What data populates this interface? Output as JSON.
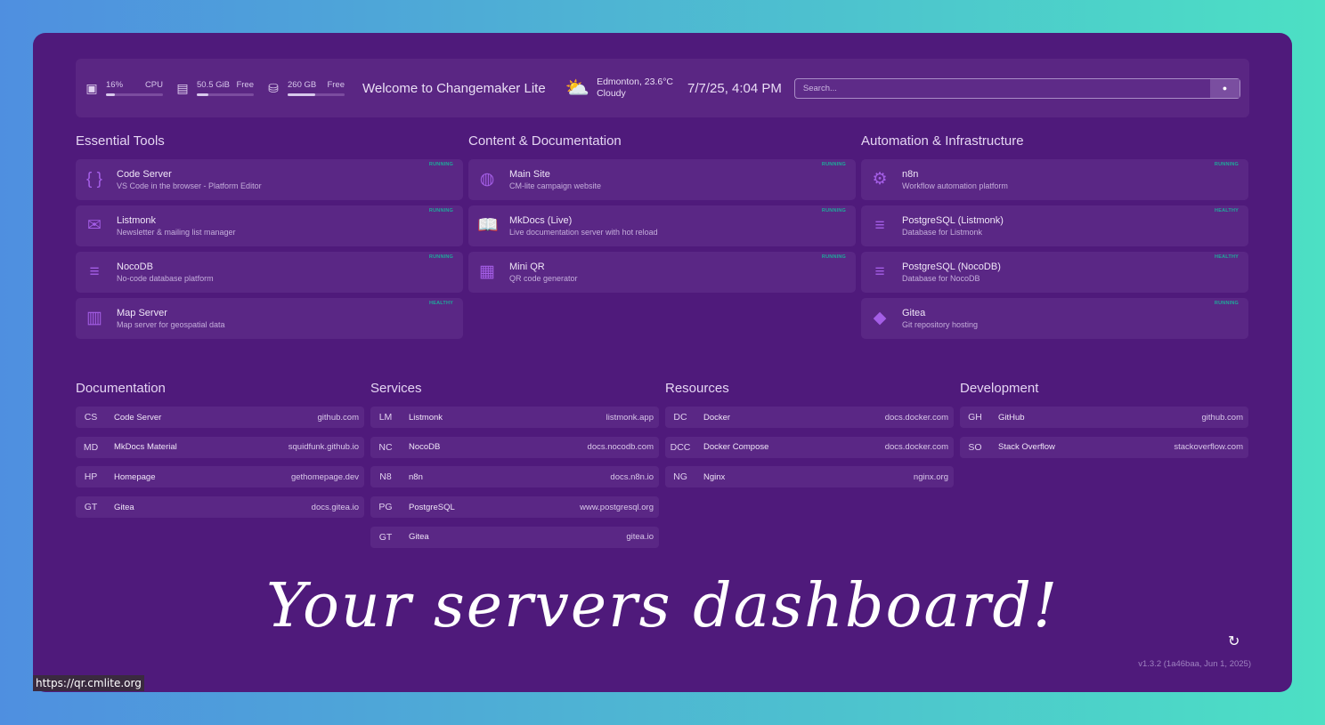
{
  "header": {
    "cpu": {
      "value": "16%",
      "label": "CPU",
      "percent": 16,
      "icon": "cpu-icon"
    },
    "memory": {
      "value": "50.5 GiB",
      "label": "Free",
      "percent": 20,
      "icon": "memory-icon"
    },
    "disk": {
      "value": "260 GB",
      "label": "Free",
      "percent": 48,
      "icon": "hard-drive-icon"
    },
    "welcome": "Welcome to Changemaker Lite",
    "weather": {
      "location": "Edmonton, 23.6°C",
      "condition": "Cloudy",
      "icon": "partly-cloudy-icon"
    },
    "datetime": "7/7/25, 4:04 PM",
    "search_placeholder": "Search..."
  },
  "groups": [
    {
      "title": "Essential Tools",
      "services": [
        {
          "name": "Code Server",
          "desc": "VS Code in the browser - Platform Editor",
          "status": "RUNNING",
          "icon": "code-braces-icon",
          "glyph": "{ }"
        },
        {
          "name": "Listmonk",
          "desc": "Newsletter & mailing list manager",
          "status": "RUNNING",
          "icon": "mail-open-icon",
          "glyph": "✉"
        },
        {
          "name": "NocoDB",
          "desc": "No-code database platform",
          "status": "RUNNING",
          "icon": "database-icon",
          "glyph": "≡"
        },
        {
          "name": "Map Server",
          "desc": "Map server for geospatial data",
          "status": "HEALTHY",
          "icon": "map-icon",
          "glyph": "▥"
        }
      ]
    },
    {
      "title": "Content & Documentation",
      "services": [
        {
          "name": "Main Site",
          "desc": "CM-lite campaign website",
          "status": "RUNNING",
          "icon": "globe-icon",
          "glyph": "◍"
        },
        {
          "name": "MkDocs (Live)",
          "desc": "Live documentation server with hot reload",
          "status": "RUNNING",
          "icon": "book-open-icon",
          "glyph": "📖"
        },
        {
          "name": "Mini QR",
          "desc": "QR code generator",
          "status": "RUNNING",
          "icon": "qr-code-icon",
          "glyph": "▦"
        }
      ]
    },
    {
      "title": "Automation & Infrastructure",
      "services": [
        {
          "name": "n8n",
          "desc": "Workflow automation platform",
          "status": "RUNNING",
          "icon": "robot-arm-icon",
          "glyph": "⚙"
        },
        {
          "name": "PostgreSQL (Listmonk)",
          "desc": "Database for Listmonk",
          "status": "HEALTHY",
          "icon": "database-icon",
          "glyph": "≡"
        },
        {
          "name": "PostgreSQL (NocoDB)",
          "desc": "Database for NocoDB",
          "status": "HEALTHY",
          "icon": "database-icon",
          "glyph": "≡"
        },
        {
          "name": "Gitea",
          "desc": "Git repository hosting",
          "status": "RUNNING",
          "icon": "git-icon",
          "glyph": "◆"
        }
      ]
    }
  ],
  "bookmarks": [
    {
      "title": "Documentation",
      "items": [
        {
          "abbr": "CS",
          "name": "Code Server",
          "url": "github.com"
        },
        {
          "abbr": "MD",
          "name": "MkDocs Material",
          "url": "squidfunk.github.io"
        },
        {
          "abbr": "HP",
          "name": "Homepage",
          "url": "gethomepage.dev"
        },
        {
          "abbr": "GT",
          "name": "Gitea",
          "url": "docs.gitea.io"
        }
      ]
    },
    {
      "title": "Services",
      "items": [
        {
          "abbr": "LM",
          "name": "Listmonk",
          "url": "listmonk.app"
        },
        {
          "abbr": "NC",
          "name": "NocoDB",
          "url": "docs.nocodb.com"
        },
        {
          "abbr": "N8",
          "name": "n8n",
          "url": "docs.n8n.io"
        },
        {
          "abbr": "PG",
          "name": "PostgreSQL",
          "url": "www.postgresql.org"
        },
        {
          "abbr": "GT",
          "name": "Gitea",
          "url": "gitea.io"
        }
      ]
    },
    {
      "title": "Resources",
      "items": [
        {
          "abbr": "DC",
          "name": "Docker",
          "url": "docs.docker.com"
        },
        {
          "abbr": "DCC",
          "name": "Docker Compose",
          "url": "docs.docker.com"
        },
        {
          "abbr": "NG",
          "name": "Nginx",
          "url": "nginx.org"
        }
      ]
    },
    {
      "title": "Development",
      "items": [
        {
          "abbr": "GH",
          "name": "GitHub",
          "url": "github.com"
        },
        {
          "abbr": "SO",
          "name": "Stack Overflow",
          "url": "stackoverflow.com"
        }
      ]
    }
  ],
  "overlay_text": "Your servers dashboard!",
  "version": "v1.3.2 (1a46baa, Jun 1, 2025)",
  "status_url": "https://qr.cmlite.org",
  "colors": {
    "background": "#4f1a7b",
    "card": "#5a2785",
    "accent": "#a45ee6",
    "status_ok": "#1fa99a"
  }
}
